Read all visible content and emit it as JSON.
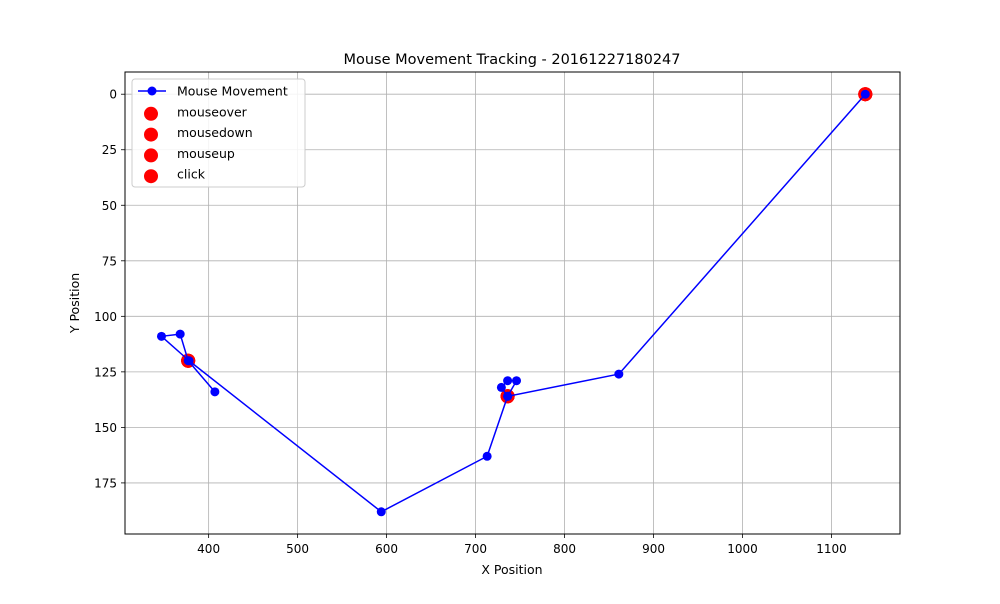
{
  "chart_data": {
    "type": "scatter",
    "title": "Mouse Movement Tracking - 20161227180247",
    "xlabel": "X Position",
    "ylabel": "Y Position",
    "xlim": [
      306,
      1177
    ],
    "ylim": [
      198,
      -10
    ],
    "y_inverted": true,
    "grid": true,
    "legend_position": "upper-left",
    "xticks": [
      400,
      500,
      600,
      700,
      800,
      900,
      1000,
      1100
    ],
    "yticks": [
      0,
      25,
      50,
      75,
      100,
      125,
      150,
      175
    ],
    "series": [
      {
        "name": "Mouse Movement",
        "kind": "line-marker",
        "color": "#0000ff",
        "x": [
          1138,
          861,
          736,
          729,
          736,
          746,
          736,
          713,
          594,
          378,
          347,
          368,
          377,
          407
        ],
        "y": [
          0,
          126,
          136,
          132,
          129,
          129,
          136,
          163,
          188,
          120,
          109,
          108,
          120,
          134
        ]
      },
      {
        "name": "mouseover",
        "kind": "scatter",
        "color": "#ff0000",
        "x": [
          1138,
          736,
          377
        ],
        "y": [
          0,
          136,
          120
        ]
      },
      {
        "name": "mousedown",
        "kind": "scatter",
        "color": "#ff0000",
        "x": [
          1138,
          736,
          377
        ],
        "y": [
          0,
          136,
          120
        ]
      },
      {
        "name": "mouseup",
        "kind": "scatter",
        "color": "#ff0000",
        "x": [
          1138,
          736,
          377
        ],
        "y": [
          0,
          136,
          120
        ]
      },
      {
        "name": "click",
        "kind": "scatter",
        "color": "#ff0000",
        "x": [
          1138,
          736,
          377
        ],
        "y": [
          0,
          136,
          120
        ]
      }
    ]
  }
}
